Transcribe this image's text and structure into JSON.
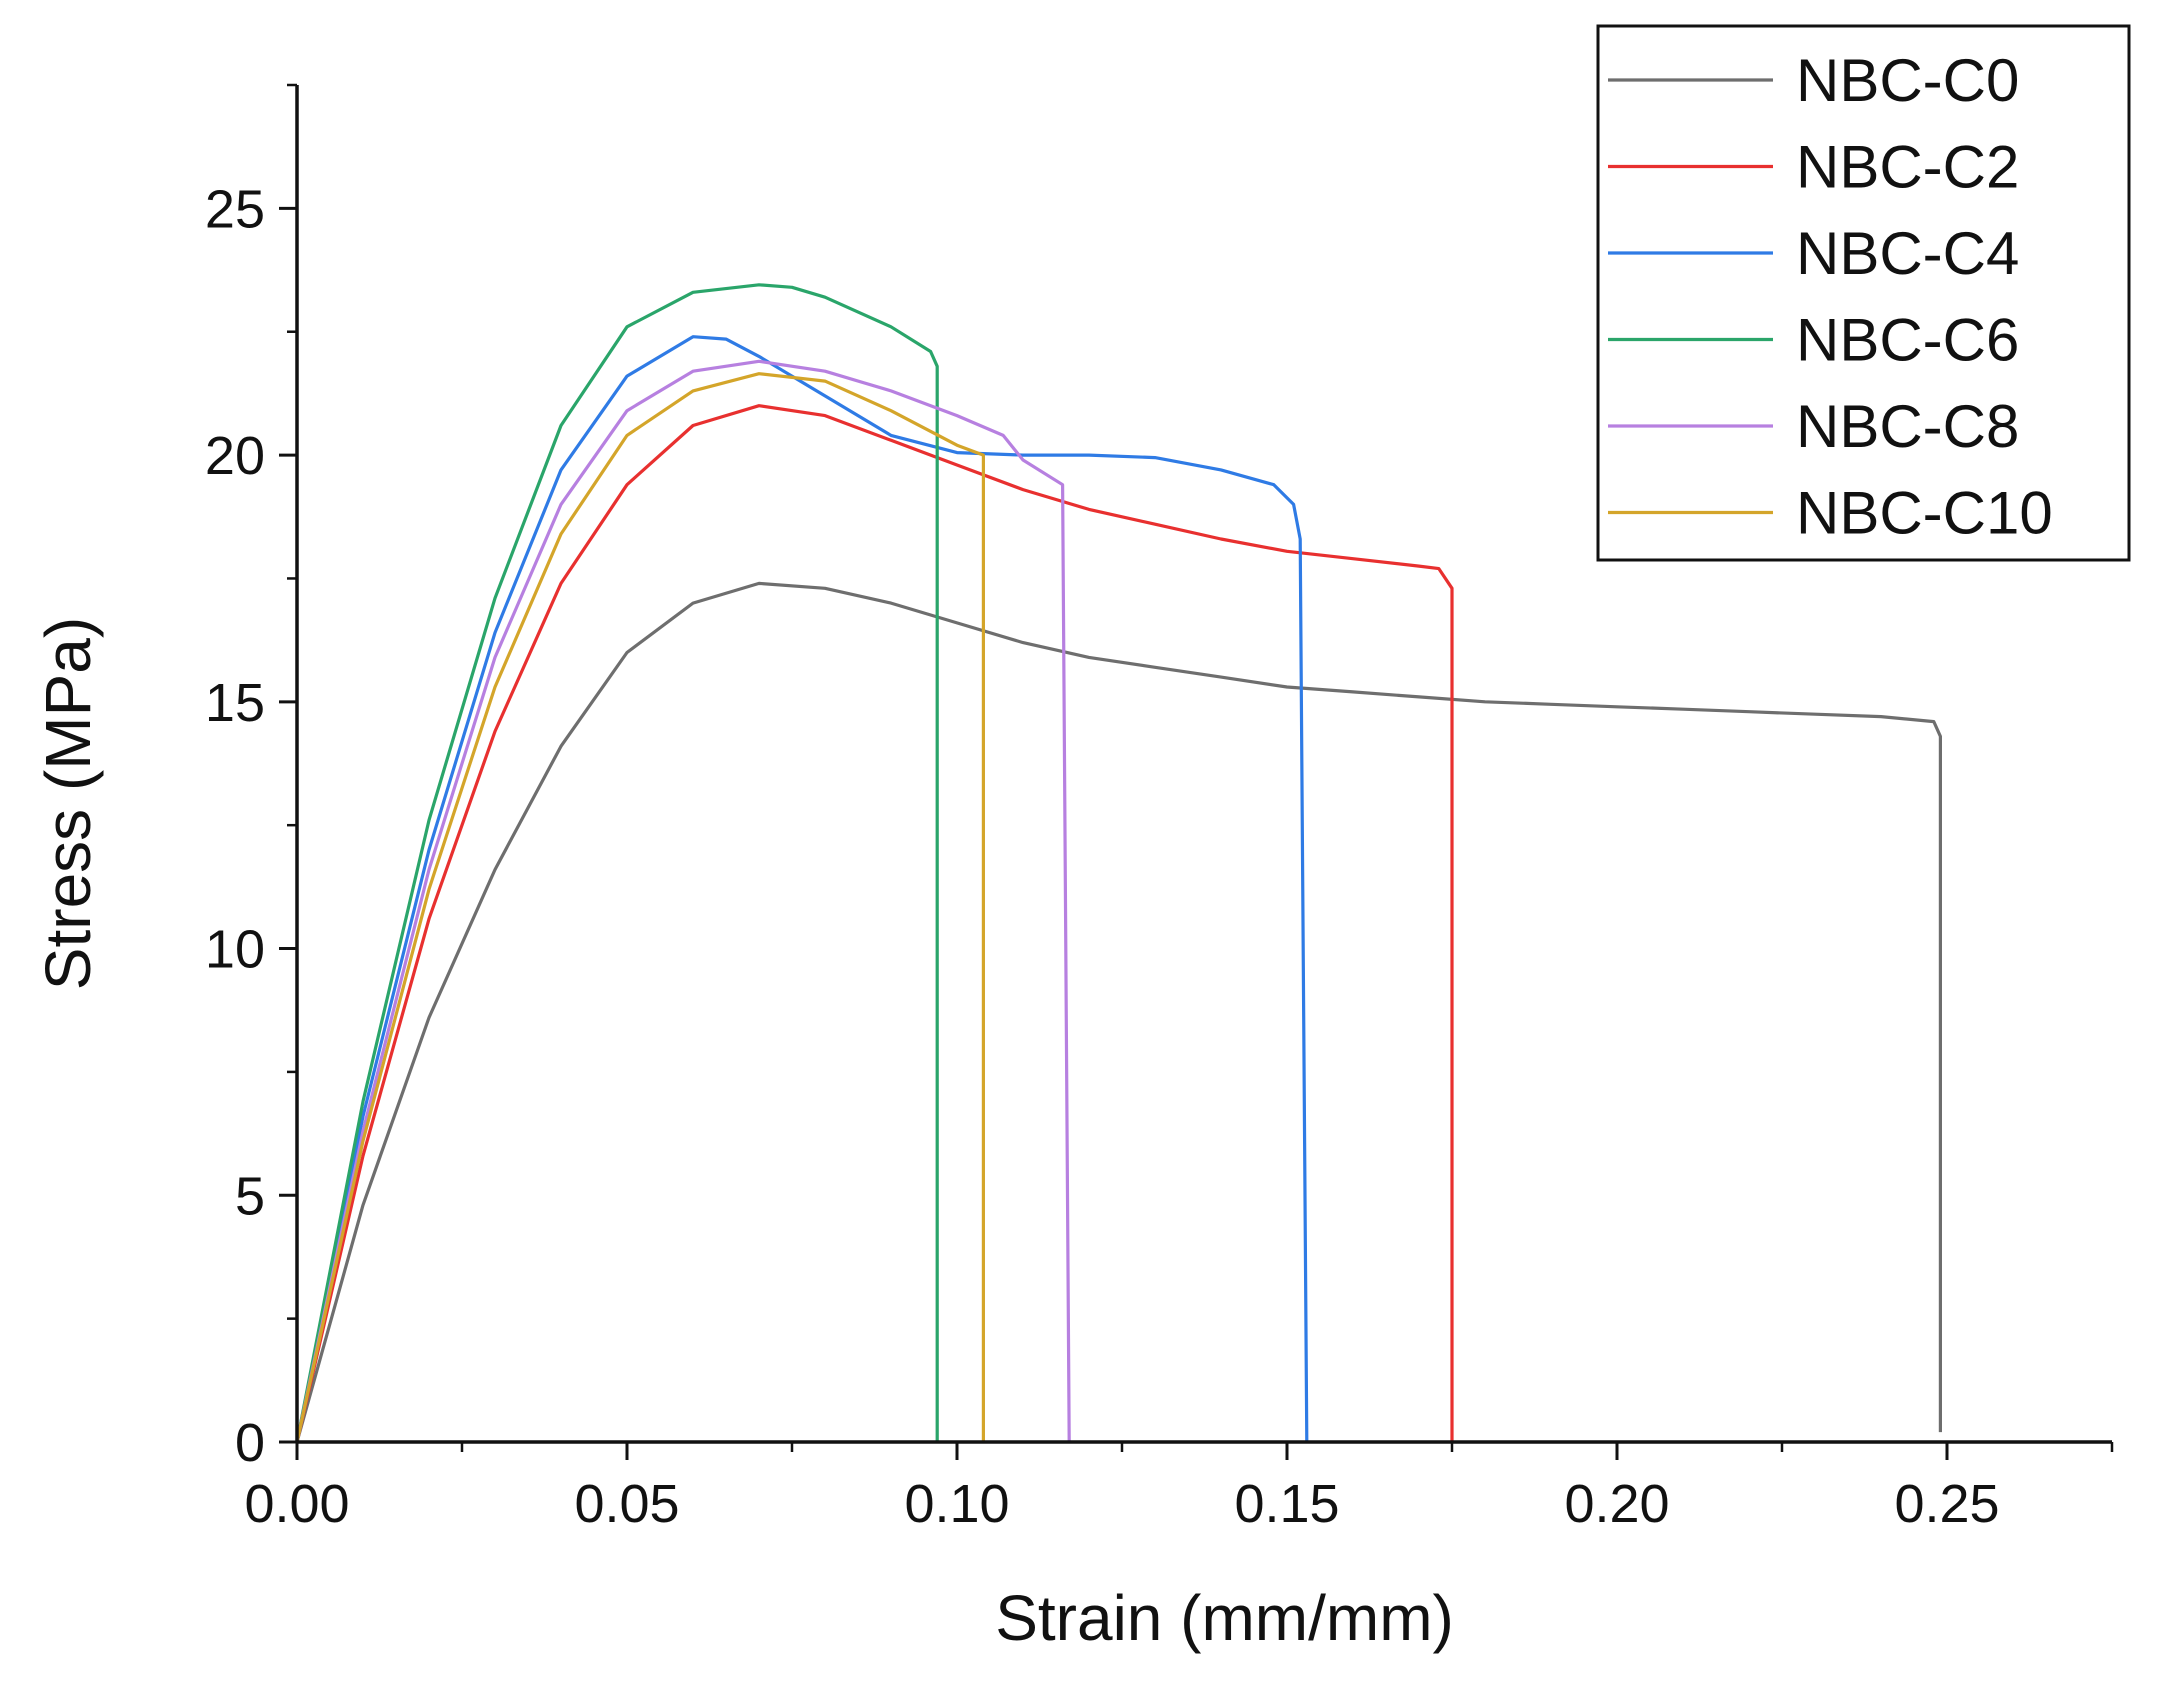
{
  "chart_data": {
    "type": "line",
    "title": "",
    "xlabel": "Strain (mm/mm)",
    "ylabel": "Stress (MPa)",
    "xlim": [
      0,
      0.275
    ],
    "ylim": [
      0,
      27.5
    ],
    "x_ticks": [
      "0.00",
      "0.05",
      "0.10",
      "0.15",
      "0.20",
      "0.25"
    ],
    "y_ticks": [
      "0",
      "5",
      "10",
      "15",
      "20",
      "25"
    ],
    "grid": false,
    "legend_position": "top-right",
    "series": [
      {
        "name": "NBC-C0",
        "color": "#6e6e6e",
        "points": [
          [
            0,
            0
          ],
          [
            0.01,
            4.8
          ],
          [
            0.02,
            8.6
          ],
          [
            0.03,
            11.6
          ],
          [
            0.04,
            14.1
          ],
          [
            0.05,
            16.0
          ],
          [
            0.06,
            17.0
          ],
          [
            0.07,
            17.4
          ],
          [
            0.08,
            17.3
          ],
          [
            0.09,
            17.0
          ],
          [
            0.1,
            16.6
          ],
          [
            0.11,
            16.2
          ],
          [
            0.12,
            15.9
          ],
          [
            0.13,
            15.7
          ],
          [
            0.14,
            15.5
          ],
          [
            0.15,
            15.3
          ],
          [
            0.16,
            15.2
          ],
          [
            0.17,
            15.1
          ],
          [
            0.18,
            15.0
          ],
          [
            0.19,
            14.95
          ],
          [
            0.2,
            14.9
          ],
          [
            0.21,
            14.85
          ],
          [
            0.22,
            14.8
          ],
          [
            0.23,
            14.75
          ],
          [
            0.24,
            14.7
          ],
          [
            0.248,
            14.6
          ],
          [
            0.249,
            14.3
          ],
          [
            0.249,
            0.2
          ]
        ]
      },
      {
        "name": "NBC-C2",
        "color": "#e8302f",
        "points": [
          [
            0,
            0
          ],
          [
            0.01,
            5.8
          ],
          [
            0.02,
            10.6
          ],
          [
            0.03,
            14.4
          ],
          [
            0.04,
            17.4
          ],
          [
            0.05,
            19.4
          ],
          [
            0.06,
            20.6
          ],
          [
            0.07,
            21.0
          ],
          [
            0.08,
            20.8
          ],
          [
            0.09,
            20.3
          ],
          [
            0.1,
            19.8
          ],
          [
            0.11,
            19.3
          ],
          [
            0.12,
            18.9
          ],
          [
            0.13,
            18.6
          ],
          [
            0.14,
            18.3
          ],
          [
            0.15,
            18.05
          ],
          [
            0.16,
            17.9
          ],
          [
            0.17,
            17.75
          ],
          [
            0.173,
            17.7
          ],
          [
            0.175,
            17.3
          ],
          [
            0.175,
            0
          ]
        ]
      },
      {
        "name": "NBC-C4",
        "color": "#2f7be5",
        "points": [
          [
            0,
            0
          ],
          [
            0.01,
            6.6
          ],
          [
            0.02,
            12.0
          ],
          [
            0.03,
            16.4
          ],
          [
            0.04,
            19.7
          ],
          [
            0.05,
            21.6
          ],
          [
            0.06,
            22.4
          ],
          [
            0.065,
            22.35
          ],
          [
            0.07,
            22.0
          ],
          [
            0.08,
            21.2
          ],
          [
            0.09,
            20.4
          ],
          [
            0.1,
            20.05
          ],
          [
            0.11,
            20.0
          ],
          [
            0.12,
            20.0
          ],
          [
            0.13,
            19.95
          ],
          [
            0.14,
            19.7
          ],
          [
            0.148,
            19.4
          ],
          [
            0.151,
            19.0
          ],
          [
            0.152,
            18.3
          ],
          [
            0.153,
            0
          ]
        ]
      },
      {
        "name": "NBC-C6",
        "color": "#2aa56a",
        "points": [
          [
            0,
            0
          ],
          [
            0.01,
            6.9
          ],
          [
            0.02,
            12.6
          ],
          [
            0.03,
            17.1
          ],
          [
            0.04,
            20.6
          ],
          [
            0.05,
            22.6
          ],
          [
            0.06,
            23.3
          ],
          [
            0.07,
            23.45
          ],
          [
            0.075,
            23.4
          ],
          [
            0.08,
            23.2
          ],
          [
            0.09,
            22.6
          ],
          [
            0.096,
            22.1
          ],
          [
            0.097,
            21.8
          ],
          [
            0.097,
            0
          ]
        ]
      },
      {
        "name": "NBC-C8",
        "color": "#b780e0",
        "points": [
          [
            0,
            0
          ],
          [
            0.01,
            6.3
          ],
          [
            0.02,
            11.6
          ],
          [
            0.03,
            15.9
          ],
          [
            0.04,
            19.0
          ],
          [
            0.05,
            20.9
          ],
          [
            0.06,
            21.7
          ],
          [
            0.07,
            21.9
          ],
          [
            0.08,
            21.7
          ],
          [
            0.09,
            21.3
          ],
          [
            0.1,
            20.8
          ],
          [
            0.107,
            20.4
          ],
          [
            0.11,
            19.9
          ],
          [
            0.116,
            19.4
          ],
          [
            0.117,
            0
          ]
        ]
      },
      {
        "name": "NBC-C10",
        "color": "#d4a52a",
        "points": [
          [
            0,
            0
          ],
          [
            0.01,
            6.1
          ],
          [
            0.02,
            11.2
          ],
          [
            0.03,
            15.3
          ],
          [
            0.04,
            18.4
          ],
          [
            0.05,
            20.4
          ],
          [
            0.06,
            21.3
          ],
          [
            0.07,
            21.65
          ],
          [
            0.08,
            21.5
          ],
          [
            0.09,
            20.9
          ],
          [
            0.1,
            20.2
          ],
          [
            0.104,
            20.0
          ],
          [
            0.104,
            0
          ]
        ]
      }
    ]
  }
}
